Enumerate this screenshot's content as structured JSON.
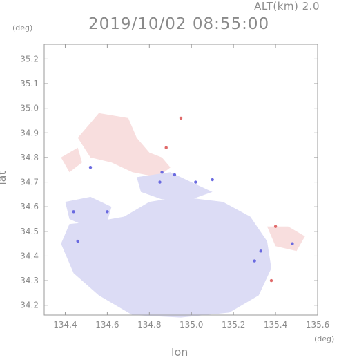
{
  "chart_data": {
    "type": "heatmap",
    "title": "2019/10/02 08:55:00",
    "subtitle": "ALT(km) 2.0",
    "xlabel": "lon",
    "ylabel": "lat",
    "x_unit": "(deg)",
    "y_unit": "(deg)",
    "xlim": [
      134.3,
      135.6
    ],
    "ylim": [
      34.16,
      35.26
    ],
    "x_ticks": [
      "134.4",
      "134.6",
      "134.8",
      "135.0",
      "135.2",
      "135.4",
      "135.6"
    ],
    "x_tick_values": [
      134.4,
      134.6,
      134.8,
      135.0,
      135.2,
      135.4,
      135.6
    ],
    "y_ticks": [
      "34.2",
      "34.3",
      "34.4",
      "34.5",
      "34.6",
      "34.7",
      "34.8",
      "34.9",
      "35.0",
      "35.1",
      "35.2"
    ],
    "y_tick_values": [
      34.2,
      34.3,
      34.4,
      34.5,
      34.6,
      34.7,
      34.8,
      34.9,
      35.0,
      35.1,
      35.2
    ],
    "grid": false,
    "colors": {
      "approaching": "#dcdcf5",
      "receding": "#f8dede",
      "strong_approaching": "#6a6ae0",
      "strong_receding": "#e06a6a",
      "axis": "#9a9a9a"
    },
    "regions": [
      {
        "kind": "approaching",
        "points": [
          [
            134.42,
            34.53
          ],
          [
            134.55,
            34.54
          ],
          [
            134.68,
            34.56
          ],
          [
            134.8,
            34.62
          ],
          [
            134.95,
            34.64
          ],
          [
            135.15,
            34.62
          ],
          [
            135.28,
            34.56
          ],
          [
            135.36,
            34.46
          ],
          [
            135.38,
            34.35
          ],
          [
            135.32,
            34.24
          ],
          [
            135.18,
            34.17
          ],
          [
            134.95,
            34.15
          ],
          [
            134.72,
            34.16
          ],
          [
            134.56,
            34.24
          ],
          [
            134.44,
            34.33
          ],
          [
            134.38,
            34.45
          ]
        ]
      },
      {
        "kind": "approaching",
        "points": [
          [
            134.4,
            34.62
          ],
          [
            134.52,
            34.64
          ],
          [
            134.62,
            34.6
          ],
          [
            134.6,
            34.54
          ],
          [
            134.5,
            34.52
          ],
          [
            134.42,
            34.55
          ]
        ]
      },
      {
        "kind": "receding",
        "points": [
          [
            134.46,
            34.88
          ],
          [
            134.56,
            34.98
          ],
          [
            134.7,
            34.96
          ],
          [
            134.74,
            34.88
          ],
          [
            134.8,
            34.82
          ],
          [
            134.86,
            34.8
          ],
          [
            134.9,
            34.76
          ],
          [
            134.84,
            34.72
          ],
          [
            134.72,
            34.74
          ],
          [
            134.62,
            34.78
          ],
          [
            134.52,
            34.8
          ]
        ]
      },
      {
        "kind": "approaching",
        "points": [
          [
            134.74,
            34.72
          ],
          [
            134.9,
            34.74
          ],
          [
            135.0,
            34.7
          ],
          [
            135.1,
            34.66
          ],
          [
            135.0,
            34.63
          ],
          [
            134.86,
            34.63
          ],
          [
            134.76,
            34.66
          ]
        ]
      },
      {
        "kind": "receding",
        "points": [
          [
            135.36,
            34.52
          ],
          [
            135.46,
            34.52
          ],
          [
            135.54,
            34.48
          ],
          [
            135.5,
            34.42
          ],
          [
            135.4,
            34.44
          ]
        ]
      },
      {
        "kind": "receding",
        "points": [
          [
            134.38,
            34.8
          ],
          [
            134.46,
            34.84
          ],
          [
            134.48,
            34.78
          ],
          [
            134.42,
            34.74
          ]
        ]
      }
    ],
    "speckles": [
      {
        "kind": "strong_approaching",
        "x": 134.92,
        "y": 34.73
      },
      {
        "kind": "strong_receding",
        "x": 134.95,
        "y": 34.96
      },
      {
        "kind": "strong_approaching",
        "x": 134.86,
        "y": 34.74
      },
      {
        "kind": "strong_receding",
        "x": 134.88,
        "y": 34.84
      },
      {
        "kind": "strong_approaching",
        "x": 135.02,
        "y": 34.7
      },
      {
        "kind": "strong_approaching",
        "x": 135.1,
        "y": 34.71
      },
      {
        "kind": "strong_receding",
        "x": 135.4,
        "y": 34.52
      },
      {
        "kind": "strong_approaching",
        "x": 135.33,
        "y": 34.42
      },
      {
        "kind": "strong_approaching",
        "x": 135.3,
        "y": 34.38
      },
      {
        "kind": "strong_receding",
        "x": 135.38,
        "y": 34.3
      },
      {
        "kind": "strong_approaching",
        "x": 134.6,
        "y": 34.58
      },
      {
        "kind": "strong_approaching",
        "x": 134.46,
        "y": 34.46
      },
      {
        "kind": "strong_approaching",
        "x": 135.48,
        "y": 34.45
      },
      {
        "kind": "strong_approaching",
        "x": 134.52,
        "y": 34.76
      },
      {
        "kind": "strong_approaching",
        "x": 134.44,
        "y": 34.58
      },
      {
        "kind": "strong_approaching",
        "x": 134.85,
        "y": 34.7
      }
    ]
  }
}
